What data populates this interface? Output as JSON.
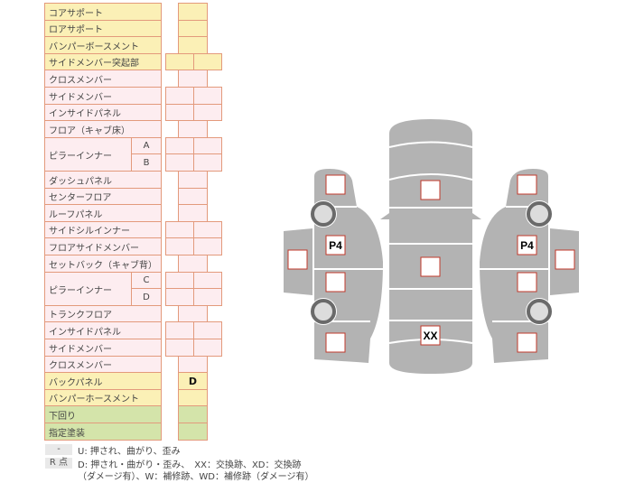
{
  "table": {
    "rows": [
      {
        "label": "コアサポート",
        "color": "yellow",
        "layout": "single",
        "cells": [
          ""
        ]
      },
      {
        "label": "ロアサポート",
        "color": "yellow",
        "layout": "single",
        "cells": [
          ""
        ]
      },
      {
        "label": "バンパーボースメント",
        "color": "yellow",
        "layout": "single",
        "cells": [
          ""
        ]
      },
      {
        "label": "サイドメンバー突起部",
        "color": "yellow",
        "layout": "double",
        "cells": [
          "",
          ""
        ]
      },
      {
        "label": "クロスメンバー",
        "color": "pink",
        "layout": "single",
        "cells": [
          ""
        ]
      },
      {
        "label": "サイドメンバー",
        "color": "pink",
        "layout": "double",
        "cells": [
          "",
          ""
        ]
      },
      {
        "label": "インサイドパネル",
        "color": "pink",
        "layout": "double",
        "cells": [
          "",
          ""
        ]
      },
      {
        "label": "フロア（キャブ床）",
        "color": "pink",
        "layout": "single",
        "cells": [
          ""
        ]
      },
      {
        "label": "ピラーインナー",
        "sub": "A",
        "color": "pink",
        "layout": "double",
        "cells": [
          "",
          ""
        ]
      },
      {
        "label": "",
        "sub": "B",
        "color": "pink",
        "layout": "double",
        "cells": [
          "",
          ""
        ]
      },
      {
        "label": "ダッシュパネル",
        "color": "pink",
        "layout": "single",
        "cells": [
          ""
        ]
      },
      {
        "label": "センターフロア",
        "color": "pink",
        "layout": "single",
        "cells": [
          ""
        ]
      },
      {
        "label": "ルーフパネル",
        "color": "pink",
        "layout": "single",
        "cells": [
          ""
        ]
      },
      {
        "label": "サイドシルインナー",
        "color": "pink",
        "layout": "double",
        "cells": [
          "",
          ""
        ]
      },
      {
        "label": "フロアサイドメンバー",
        "color": "pink",
        "layout": "double",
        "cells": [
          "",
          ""
        ]
      },
      {
        "label": "セットバック（キャブ背）",
        "color": "pink",
        "layout": "single",
        "cells": [
          ""
        ]
      },
      {
        "label": "ピラーインナー",
        "sub": "C",
        "color": "pink",
        "layout": "double",
        "cells": [
          "",
          ""
        ]
      },
      {
        "label": "",
        "sub": "D",
        "color": "pink",
        "layout": "double",
        "cells": [
          "",
          ""
        ]
      },
      {
        "label": "トランクフロア",
        "color": "pink",
        "layout": "single",
        "cells": [
          ""
        ]
      },
      {
        "label": "インサイドパネル",
        "color": "pink",
        "layout": "double",
        "cells": [
          "",
          ""
        ]
      },
      {
        "label": "サイドメンバー",
        "color": "pink",
        "layout": "double",
        "cells": [
          "",
          ""
        ]
      },
      {
        "label": "クロスメンバー",
        "color": "pink",
        "layout": "single",
        "cells": [
          ""
        ]
      },
      {
        "label": "バックパネル",
        "color": "yellow",
        "layout": "single",
        "cells": [
          "D"
        ]
      },
      {
        "label": "バンパーホースメント",
        "color": "yellow",
        "layout": "single",
        "cells": [
          ""
        ]
      },
      {
        "label": "下回り",
        "color": "green",
        "layout": "single",
        "cells": [
          ""
        ]
      },
      {
        "label": "指定塗装",
        "color": "green",
        "layout": "single",
        "cells": [
          ""
        ]
      }
    ]
  },
  "legend": {
    "dash_key": "-",
    "dash_text": "U: 押され、曲がり、歪み",
    "r_key": "R 点",
    "r_text1": "D: 押され・曲がり・歪み、　XX：交換跡、XD：交換跡",
    "r_text2": "（ダメージ有）、W：補修跡、WD：補修跡（ダメージ有）"
  },
  "diagram": {
    "left_marks": [
      "",
      "P4",
      "",
      "",
      ""
    ],
    "center_marks": [
      "",
      "",
      "XX"
    ],
    "right_marks": [
      "",
      "P4",
      "",
      "",
      ""
    ],
    "colors": {
      "body": "#b3b3b3",
      "mark_border": "#c0392b",
      "wheel": "#6a6a6a",
      "wheel_inner": "#dcdcdc"
    }
  }
}
